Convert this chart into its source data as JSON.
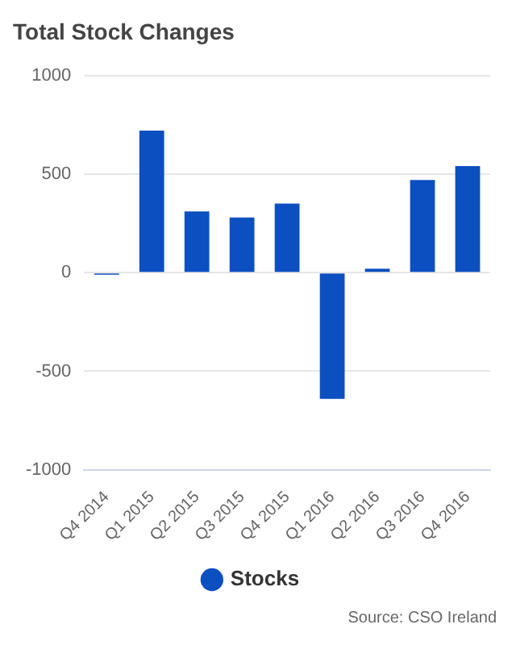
{
  "chart_data": {
    "type": "bar",
    "title": "Total Stock Changes",
    "categories": [
      "Q4 2014",
      "Q1 2015",
      "Q2 2015",
      "Q3 2015",
      "Q4 2015",
      "Q1 2016",
      "Q2 2016",
      "Q3 2016",
      "Q4 2016"
    ],
    "series": [
      {
        "name": "Stocks",
        "color": "#0c4fc0",
        "values": [
          -10,
          720,
          310,
          280,
          350,
          -640,
          20,
          470,
          540
        ]
      }
    ],
    "ylim": [
      -1000,
      1000
    ],
    "yticks": [
      -1000,
      -500,
      0,
      500,
      1000
    ],
    "grid": "y",
    "legend": "bottom",
    "annotations": [
      "Source: CSO Ireland"
    ]
  }
}
